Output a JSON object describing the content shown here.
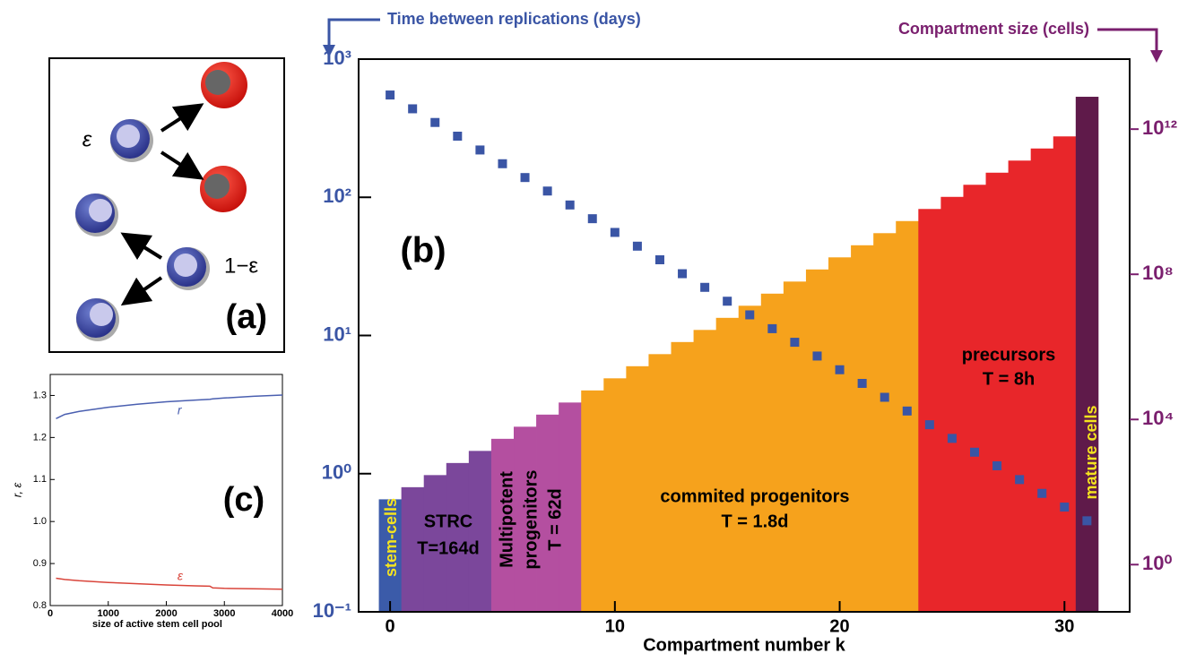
{
  "diagram": {
    "labels": [
      "ε",
      "1−ε"
    ],
    "panel_label": "(a)"
  },
  "chart_data": [
    {
      "type": "bar",
      "panel_label": "(b)",
      "x_label": "Compartment number k",
      "y_label": "Time between replications (days)",
      "y2_label": "Compartment size (cells)",
      "xlim": [
        -1.4,
        32.9
      ],
      "xticks": [
        0,
        10,
        20,
        30
      ],
      "ylim": [
        0.1,
        1000
      ],
      "y_scale": "log",
      "yticks": [
        {
          "value": 0.1,
          "label": "10⁻¹"
        },
        {
          "value": 1,
          "label": "10⁰"
        },
        {
          "value": 10,
          "label": "10¹"
        },
        {
          "value": 100,
          "label": "10²"
        },
        {
          "value": 1000,
          "label": "10³"
        }
      ],
      "y2lim": [
        0.05,
        85000000000000.0
      ],
      "y2_scale": "log",
      "y2ticks": [
        {
          "value": 1,
          "label": "10⁰"
        },
        {
          "value": 10000,
          "label": "10⁴"
        },
        {
          "value": 100000000,
          "label": "10⁸"
        },
        {
          "value": 1000000000000,
          "label": "10¹²"
        }
      ],
      "x": [
        0,
        1,
        2,
        3,
        4,
        5,
        6,
        7,
        8,
        9,
        10,
        11,
        12,
        13,
        14,
        15,
        16,
        17,
        18,
        19,
        20,
        21,
        22,
        23,
        24,
        25,
        26,
        27,
        28,
        29,
        30,
        31
      ],
      "series": [
        {
          "type": "bar",
          "axis": "y2",
          "colors": [
            "#3b5ba9",
            "#7b479b",
            "#7b479b",
            "#7b479b",
            "#7b479b",
            "#b44fa0",
            "#b44fa0",
            "#b44fa0",
            "#b44fa0",
            "#f6a21c",
            "#f6a21c",
            "#f6a21c",
            "#f6a21c",
            "#f6a21c",
            "#f6a21c",
            "#f6a21c",
            "#f6a21c",
            "#f6a21c",
            "#f6a21c",
            "#f6a21c",
            "#f6a21c",
            "#f6a21c",
            "#f6a21c",
            "#f6a21c",
            "#e8262a",
            "#e8262a",
            "#e8262a",
            "#e8262a",
            "#e8262a",
            "#e8262a",
            "#e8262a",
            "#5f1a4a"
          ],
          "values": [
            63,
            136,
            293,
            631,
            1360,
            2930,
            6310,
            13600,
            29300,
            63100,
            136000,
            293000,
            631000,
            1360000,
            2930000,
            6310000,
            13600000,
            29300000,
            63100000,
            136000000,
            293000000,
            631000000,
            1360000000,
            2930000000,
            6310000000,
            13600000000,
            29300000000,
            63100000000,
            136000000000,
            293000000000,
            631000000000,
            7800000000000
          ]
        },
        {
          "type": "scatter",
          "axis": "y",
          "color": "#3a55a5",
          "values": [
            550,
            437,
            348,
            277,
            220,
            175,
            139,
            111,
            88,
            70,
            55.7,
            44.3,
            35.3,
            28.0,
            22.3,
            17.7,
            14.1,
            11.2,
            8.93,
            7.1,
            5.65,
            4.5,
            3.57,
            2.84,
            2.26,
            1.8,
            1.43,
            1.14,
            0.906,
            0.72,
            0.573,
            0.456
          ]
        }
      ],
      "annotations": [
        [
          "stem-cells"
        ],
        [
          "STRC",
          "T=164d"
        ],
        [
          "Multipotent",
          "progenitors",
          "T = 62d"
        ],
        [
          "commited progenitors",
          "T = 1.8d"
        ],
        [
          "precursors",
          "T = 8h"
        ],
        [
          "mature cells"
        ]
      ]
    },
    {
      "type": "line",
      "panel_label": "(c)",
      "x_label": "size of active stem cell pool",
      "y_label": "r, ε",
      "xlim": [
        0,
        4000
      ],
      "xticks": [
        0,
        1000,
        2000,
        3000,
        4000
      ],
      "ylim": [
        0.8,
        1.35
      ],
      "yticks": [
        0.8,
        0.9,
        {
          "value": 1.0,
          "label": "1.0"
        },
        1.1,
        1.2,
        1.3
      ],
      "x": [
        100,
        250,
        500,
        1000,
        1500,
        2000,
        2500,
        2750,
        2800,
        3000,
        3500,
        4000
      ],
      "series": [
        {
          "name": "r",
          "color": "#4a5fb0",
          "values": [
            1.245,
            1.255,
            1.262,
            1.272,
            1.279,
            1.285,
            1.289,
            1.291,
            1.292,
            1.294,
            1.298,
            1.301
          ]
        },
        {
          "name": "ε",
          "color": "#d9443a",
          "values": [
            0.865,
            0.862,
            0.859,
            0.855,
            0.852,
            0.849,
            0.847,
            0.846,
            0.842,
            0.841,
            0.84,
            0.839
          ]
        }
      ]
    }
  ]
}
